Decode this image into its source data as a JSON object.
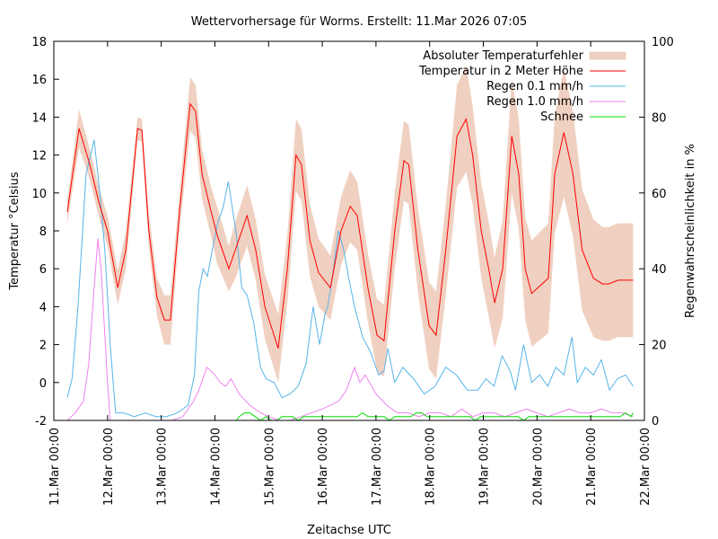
{
  "chart_data": {
    "type": "line",
    "title": "Wettervorhersage für Worms. Erstellt: 11.Mar 2026 07:05",
    "xlabel": "Zeitachse UTC",
    "ylabel": "Temperatur °Celsius",
    "y2label": "Regenwahrscheinlichkeit in %",
    "xlim_days": [
      0,
      11
    ],
    "ylim": [
      -2,
      18
    ],
    "y2lim": [
      0,
      100
    ],
    "grid": false,
    "legend_position": "top-right",
    "x_tick_labels": [
      "11.Mar 00:00",
      "12.Mar 00:00",
      "13.Mar 00:00",
      "14.Mar 00:00",
      "15.Mar 00:00",
      "16.Mar 00:00",
      "17.Mar 00:00",
      "18.Mar 00:00",
      "19.Mar 00:00",
      "20.Mar 00:00",
      "21.Mar 00:00",
      "22.Mar 00:00"
    ],
    "y_ticks": [
      -2,
      0,
      2,
      4,
      6,
      8,
      10,
      12,
      14,
      16,
      18
    ],
    "y2_ticks": [
      0,
      20,
      40,
      60,
      80,
      100
    ],
    "colors": {
      "band": "#f0d0c0",
      "temperature": "#ff0000",
      "rain01": "#56b4e9",
      "rain10": "#ee82ee",
      "snow": "#00dd00",
      "axis": "#000000"
    },
    "legend": [
      {
        "key": "band",
        "label": "Absoluter Temperaturfehler"
      },
      {
        "key": "temperature",
        "label": "Temperatur in 2 Meter Höhe"
      },
      {
        "key": "rain01",
        "label": "Regen 0.1 mm/h"
      },
      {
        "key": "rain10",
        "label": "Regen 1.0 mm/h"
      },
      {
        "key": "snow",
        "label": "Schnee"
      }
    ],
    "series": [
      {
        "name": "Temperatur in 2 Meter Höhe",
        "axis": "y1",
        "x_days": [
          0.25,
          0.47,
          0.67,
          0.84,
          1.0,
          1.19,
          1.34,
          1.56,
          1.64,
          1.77,
          1.92,
          2.06,
          2.17,
          2.34,
          2.54,
          2.64,
          2.76,
          2.93,
          3.04,
          3.26,
          3.38,
          3.6,
          3.76,
          3.93,
          4.18,
          4.35,
          4.51,
          4.61,
          4.77,
          4.93,
          5.15,
          5.35,
          5.52,
          5.65,
          5.85,
          6.02,
          6.15,
          6.35,
          6.52,
          6.61,
          6.78,
          6.99,
          7.12,
          7.3,
          7.51,
          7.68,
          7.8,
          7.96,
          8.1,
          8.21,
          8.36,
          8.53,
          8.66,
          8.78,
          8.9,
          9.21,
          9.33,
          9.5,
          9.67,
          9.84,
          10.05,
          10.22,
          10.33,
          10.51,
          10.67,
          10.79
        ],
        "values": [
          9.0,
          13.4,
          11.5,
          9.5,
          8.0,
          5.0,
          7.0,
          13.4,
          13.3,
          8.0,
          4.5,
          3.3,
          3.3,
          9.0,
          14.7,
          14.3,
          11.0,
          9.0,
          7.8,
          6.0,
          7.0,
          8.8,
          7.0,
          4.0,
          1.8,
          6.0,
          12.0,
          11.5,
          7.5,
          5.8,
          5.0,
          8.0,
          9.3,
          8.8,
          5.0,
          2.5,
          2.2,
          8.0,
          11.7,
          11.5,
          7.0,
          3.0,
          2.5,
          7.0,
          13.0,
          13.9,
          12.0,
          8.0,
          6.0,
          4.2,
          6.0,
          13.0,
          11.0,
          6.0,
          4.7,
          5.5,
          11.0,
          13.2,
          11.0,
          7.0,
          5.5,
          5.2,
          5.2,
          5.4,
          5.4,
          5.4
        ]
      },
      {
        "name": "Absoluter Temperaturfehler",
        "axis": "y1",
        "type": "band",
        "x_days": [
          0.25,
          0.47,
          0.67,
          0.84,
          1.0,
          1.19,
          1.34,
          1.56,
          1.64,
          1.77,
          1.92,
          2.06,
          2.17,
          2.34,
          2.54,
          2.64,
          2.76,
          2.93,
          3.04,
          3.26,
          3.38,
          3.6,
          3.76,
          3.93,
          4.18,
          4.35,
          4.51,
          4.61,
          4.77,
          4.93,
          5.15,
          5.35,
          5.52,
          5.65,
          5.85,
          6.02,
          6.15,
          6.35,
          6.52,
          6.61,
          6.78,
          6.99,
          7.12,
          7.3,
          7.51,
          7.68,
          7.8,
          7.96,
          8.1,
          8.21,
          8.36,
          8.53,
          8.66,
          8.78,
          8.9,
          9.21,
          9.33,
          9.5,
          9.67,
          9.84,
          10.05,
          10.22,
          10.33,
          10.51,
          10.67,
          10.79
        ],
        "error": [
          0.6,
          1.0,
          0.8,
          0.8,
          0.8,
          0.9,
          1.0,
          0.6,
          0.6,
          0.9,
          1.0,
          1.3,
          1.3,
          1.0,
          1.4,
          1.4,
          1.3,
          1.3,
          1.5,
          1.2,
          1.5,
          1.6,
          1.6,
          1.7,
          1.8,
          1.8,
          1.9,
          1.9,
          1.9,
          1.8,
          1.7,
          1.8,
          1.9,
          1.8,
          1.8,
          1.9,
          1.9,
          2.0,
          2.1,
          2.1,
          2.2,
          2.3,
          2.3,
          2.4,
          2.7,
          2.8,
          2.6,
          2.5,
          2.5,
          2.4,
          2.6,
          3.0,
          2.9,
          2.7,
          2.8,
          2.9,
          3.1,
          3.4,
          3.3,
          3.2,
          3.1,
          3.0,
          3.0,
          3.0,
          3.0,
          3.0
        ]
      },
      {
        "name": "Regen 0.1 mm/h",
        "axis": "y2",
        "x_days": [
          0.25,
          0.34,
          0.45,
          0.6,
          0.75,
          0.85,
          0.95,
          1.05,
          1.15,
          1.3,
          1.5,
          1.7,
          1.9,
          2.1,
          2.3,
          2.5,
          2.62,
          2.7,
          2.78,
          2.86,
          2.95,
          3.05,
          3.15,
          3.25,
          3.4,
          3.5,
          3.6,
          3.72,
          3.85,
          3.95,
          4.1,
          4.25,
          4.4,
          4.55,
          4.7,
          4.83,
          4.95,
          5.05,
          5.1,
          5.2,
          5.3,
          5.4,
          5.5,
          5.6,
          5.75,
          5.9,
          6.05,
          6.15,
          6.22,
          6.35,
          6.5,
          6.7,
          6.9,
          7.1,
          7.3,
          7.5,
          7.7,
          7.9,
          8.05,
          8.2,
          8.35,
          8.5,
          8.6,
          8.75,
          8.9,
          9.05,
          9.2,
          9.35,
          9.5,
          9.65,
          9.75,
          9.9,
          10.05,
          10.2,
          10.35,
          10.5,
          10.65,
          10.79
        ],
        "values": [
          6,
          11,
          30,
          65,
          74,
          61,
          45,
          20,
          2,
          2,
          1,
          2,
          1,
          1,
          2,
          4,
          12,
          34,
          40,
          38,
          45,
          52,
          56,
          63,
          49,
          35,
          33,
          26,
          14,
          11,
          10,
          6,
          7,
          9,
          15,
          30,
          20,
          28,
          30,
          39,
          50,
          45,
          37,
          30,
          22,
          18,
          12,
          13,
          19,
          10,
          14,
          11,
          7,
          9,
          14,
          12,
          8,
          8,
          11,
          9,
          17,
          13,
          8,
          20,
          10,
          12,
          9,
          14,
          12,
          22,
          10,
          14,
          12,
          16,
          8,
          11,
          12,
          9
        ],
        "values_note": "percent on right axis; approximated"
      },
      {
        "name": "Regen 1.0 mm/h",
        "axis": "y2",
        "x_days": [
          0.25,
          0.4,
          0.55,
          0.65,
          0.75,
          0.82,
          0.88,
          0.92,
          1.0,
          1.05,
          1.1,
          1.3,
          1.6,
          1.9,
          2.2,
          2.4,
          2.6,
          2.7,
          2.85,
          3.0,
          3.1,
          3.2,
          3.3,
          3.45,
          3.65,
          3.85,
          4.0,
          4.2,
          4.4,
          4.6,
          4.8,
          5.0,
          5.15,
          5.3,
          5.45,
          5.6,
          5.7,
          5.8,
          6.0,
          6.2,
          6.4,
          6.6,
          6.8,
          7.0,
          7.2,
          7.4,
          7.6,
          7.8,
          8.0,
          8.2,
          8.4,
          8.6,
          8.8,
          9.0,
          9.2,
          9.4,
          9.6,
          9.8,
          10.0,
          10.2,
          10.4,
          10.6,
          10.79
        ],
        "values": [
          0,
          2,
          5,
          15,
          35,
          48,
          40,
          30,
          10,
          0,
          0,
          0,
          0,
          0,
          0,
          1,
          5,
          8,
          14,
          12,
          10,
          9,
          11,
          7,
          4,
          2,
          1,
          0,
          0,
          1,
          2,
          3,
          4,
          5,
          8,
          14,
          10,
          12,
          7,
          4,
          2,
          2,
          1,
          2,
          2,
          1,
          3,
          1,
          2,
          2,
          1,
          2,
          3,
          2,
          1,
          2,
          3,
          2,
          2,
          3,
          2,
          2,
          1
        ]
      },
      {
        "name": "Schnee",
        "axis": "y2",
        "x_days": [
          3.4,
          3.45,
          3.55,
          3.65,
          3.75,
          3.85,
          3.95,
          4.05,
          4.15,
          4.25,
          4.35,
          4.45,
          4.55,
          4.65,
          4.75,
          4.85,
          4.95,
          5.05,
          5.15,
          5.25,
          5.35,
          5.45,
          5.55,
          5.65,
          5.75,
          5.85,
          5.95,
          6.05,
          6.15,
          6.25,
          6.35,
          6.45,
          6.55,
          6.65,
          6.75,
          6.85,
          6.95,
          7.05,
          7.15,
          7.25,
          7.35,
          7.45,
          7.55,
          7.65,
          7.75,
          7.85,
          7.95,
          8.05,
          8.15,
          8.25,
          8.35,
          8.45,
          8.55,
          8.65,
          8.75,
          8.85,
          8.95,
          9.05,
          9.15,
          9.25,
          9.35,
          9.45,
          9.55,
          9.65,
          9.75,
          9.85,
          9.95,
          10.05,
          10.15,
          10.25,
          10.35,
          10.45,
          10.55,
          10.65,
          10.75,
          10.79
        ],
        "values": [
          0,
          1,
          2,
          2,
          1,
          0,
          1,
          0,
          0,
          1,
          1,
          1,
          0,
          1,
          1,
          1,
          1,
          1,
          1,
          1,
          1,
          1,
          1,
          1,
          2,
          1,
          1,
          1,
          1,
          0,
          1,
          1,
          1,
          1,
          2,
          2,
          1,
          1,
          1,
          1,
          1,
          1,
          1,
          1,
          1,
          0,
          1,
          1,
          1,
          1,
          1,
          1,
          1,
          1,
          0,
          1,
          1,
          1,
          1,
          1,
          1,
          1,
          1,
          1,
          1,
          1,
          1,
          1,
          1,
          1,
          1,
          1,
          1,
          2,
          1,
          2
        ]
      }
    ]
  }
}
